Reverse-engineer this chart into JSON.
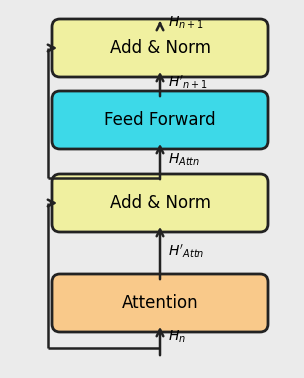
{
  "outer_box_color": "#ebebeb",
  "outer_box_edge": "#222222",
  "box_attention_color": "#f9c98a",
  "box_addnorm_color": "#f0f0a0",
  "box_ff_color": "#3dd9e8",
  "box_edge_color": "#222222",
  "labels": {
    "attention": "Attention",
    "addnorm1": "Add & Norm",
    "ff": "Feed Forward",
    "addnorm2": "Add & Norm"
  },
  "inter_labels": {
    "hn": "$H_n$",
    "h_attn_prime": "$H'_{Attn}$",
    "h_attn": "$H_{Attn}$",
    "h_n1_prime": "$H'_{n+1}$",
    "h_n1": "$H_{n+1}$"
  },
  "font_size": 12,
  "label_font_size": 10,
  "arrow_color": "#222222"
}
